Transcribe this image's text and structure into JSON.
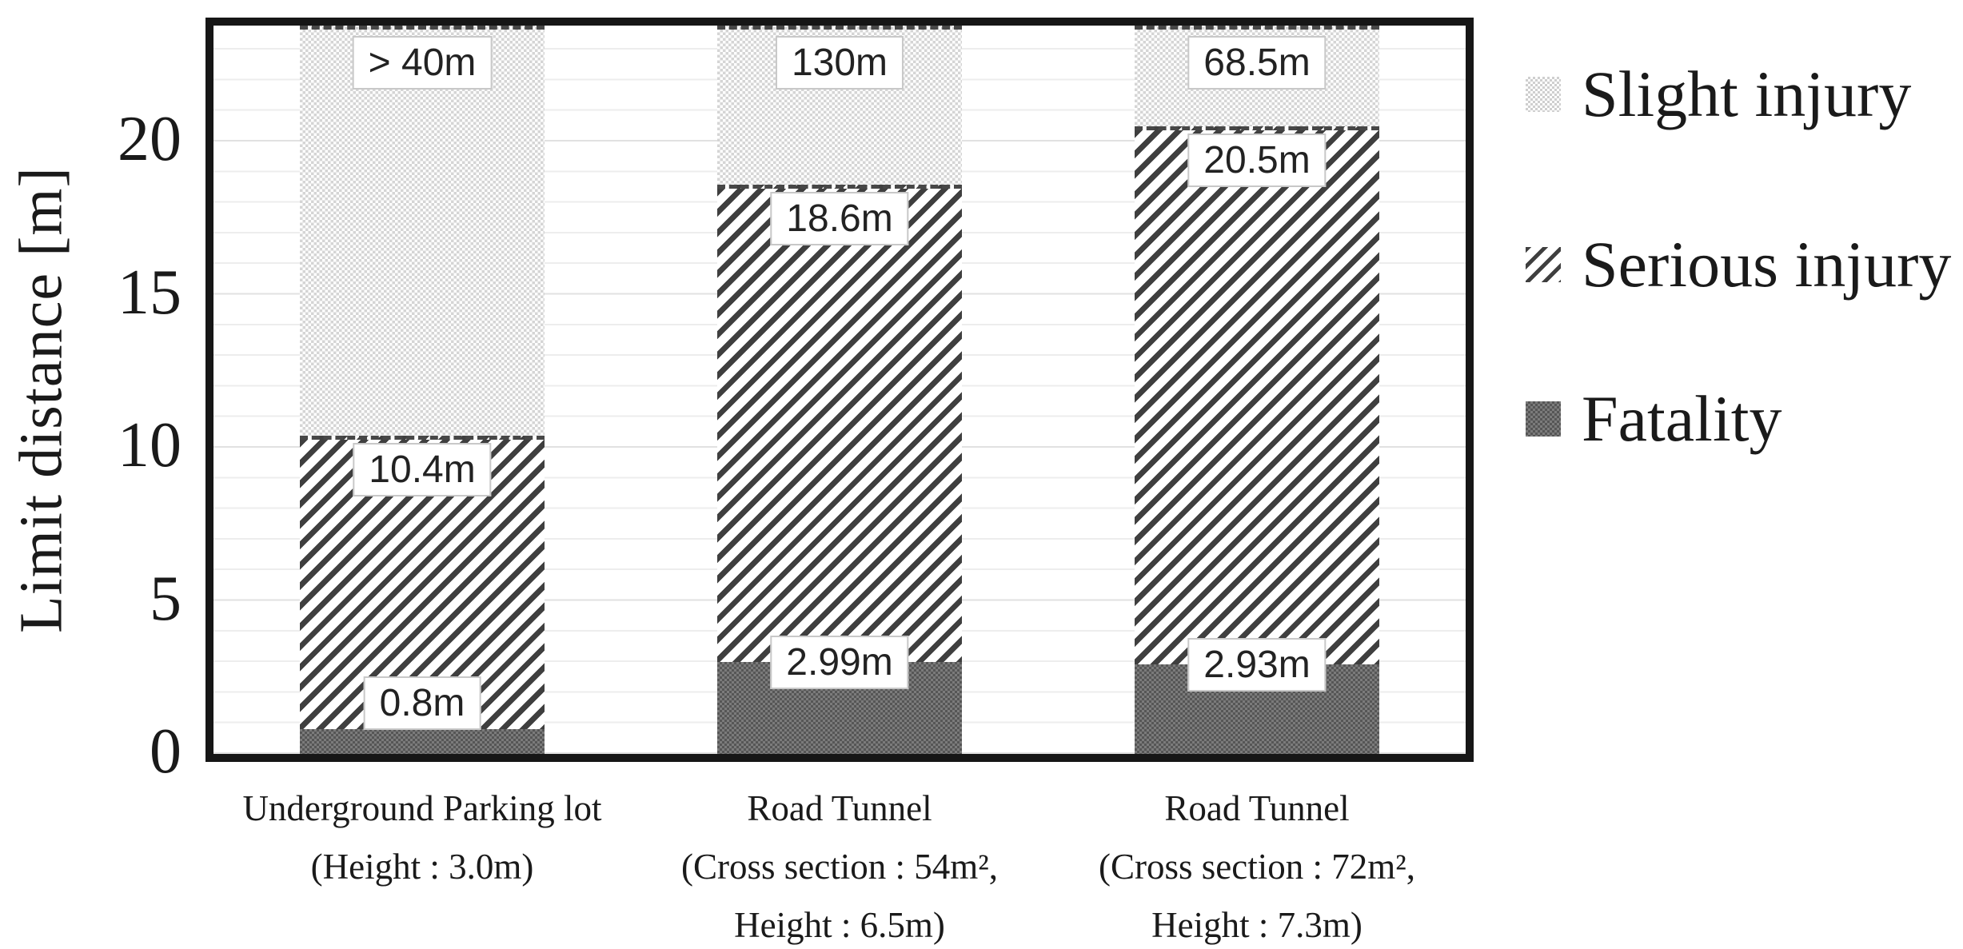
{
  "chart_data": {
    "type": "bar",
    "variant": "stacked",
    "title": "",
    "ylabel": "Limit distance [m]",
    "unit": "m",
    "ylim": [
      0,
      24.2
    ],
    "yticks": [
      0,
      5,
      10,
      15,
      20
    ],
    "grid": {
      "visible": true,
      "minor_step_m": 1,
      "major_step_m": 5
    },
    "legend_position": "right-outside",
    "categories": [
      {
        "label_lines": [
          "Underground Parking lot",
          "(Height : 3.0m)"
        ]
      },
      {
        "label_lines": [
          "Road Tunnel",
          "(Cross section : 54m²,",
          "Height : 6.5m)"
        ]
      },
      {
        "label_lines": [
          "Road Tunnel",
          "(Cross section : 72m²,",
          "Height : 7.3m)"
        ]
      }
    ],
    "series": [
      {
        "name": "Fatality",
        "pattern": "dark-checker",
        "cumulative_top_m": [
          0.8,
          2.99,
          2.93
        ],
        "labels": [
          "0.8m",
          "2.99m",
          "2.93m"
        ]
      },
      {
        "name": "Serious injury",
        "pattern": "diagonal-hatch",
        "cumulative_top_m": [
          10.4,
          18.6,
          20.5
        ],
        "labels": [
          "10.4m",
          "18.6m",
          "20.5m"
        ]
      },
      {
        "name": "Slight injury",
        "pattern": "light-dots",
        "clipped_at_axis_top": true,
        "cumulative_top_m": [
          ">40",
          130,
          68.5
        ],
        "labels": [
          "> 40m",
          "130m",
          "68.5m"
        ]
      }
    ],
    "legend": [
      {
        "label": "Slight injury",
        "pattern": "light-dots"
      },
      {
        "label": "Serious injury",
        "pattern": "diagonal-hatch"
      },
      {
        "label": "Fatality",
        "pattern": "dark-checker"
      }
    ],
    "colors": {
      "frame": "#161616",
      "hatch_dark": "#3f3f3f",
      "dots_light": "#d5d5d5",
      "fatality_dark": "#565656",
      "fatality_light": "#7b7b7b",
      "grid_minor": "#ededed",
      "grid_major": "#e1e1e1",
      "label_box_border": "#c8c8c8",
      "text": "#1a1a1a"
    }
  }
}
